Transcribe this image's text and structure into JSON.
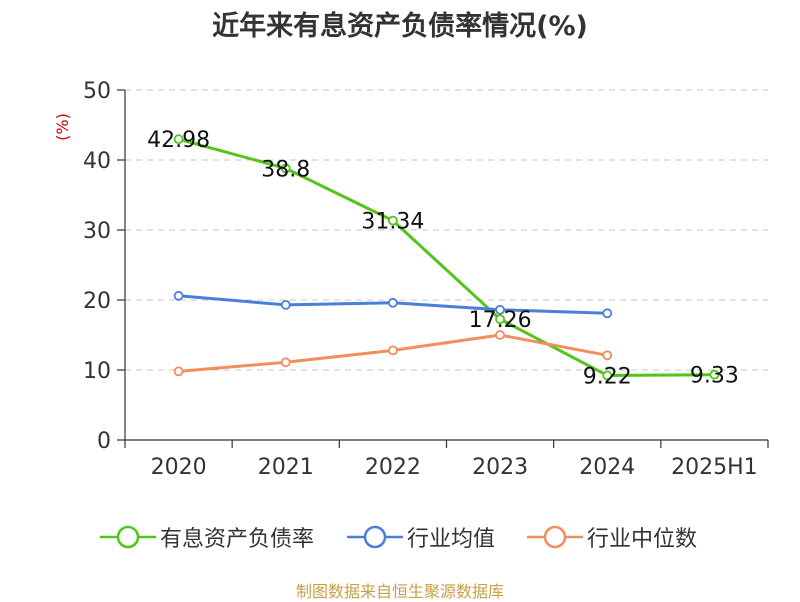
{
  "chart_data": {
    "type": "line",
    "title": "近年来有息资产负债率情况(%)",
    "ylabel": "(%)",
    "categories": [
      "2020",
      "2021",
      "2022",
      "2023",
      "2024",
      "2025H1"
    ],
    "ylim": [
      0,
      50
    ],
    "yticks": [
      0,
      10,
      20,
      30,
      40,
      50
    ],
    "grid": true,
    "legend": "bottom",
    "series": [
      {
        "name": "有息资产负债率",
        "color": "#52c41a",
        "values": [
          42.98,
          38.8,
          31.34,
          17.26,
          9.22,
          9.33
        ],
        "labels": [
          "42.98",
          "38.8",
          "31.34",
          "17.26",
          "9.22",
          "9.33"
        ]
      },
      {
        "name": "行业均值",
        "color": "#4a7fd8",
        "values": [
          20.6,
          19.3,
          19.6,
          18.6,
          18.1,
          null
        ]
      },
      {
        "name": "行业中位数",
        "color": "#f28e5c",
        "values": [
          9.8,
          11.1,
          12.8,
          15.0,
          12.1,
          null
        ]
      }
    ]
  },
  "source": "制图数据来自恒生聚源数据库"
}
